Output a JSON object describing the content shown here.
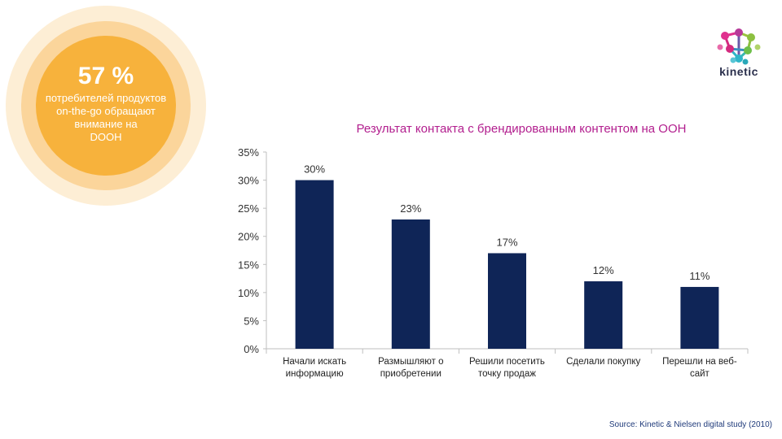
{
  "stat": {
    "value": "57 %",
    "lines": [
      "потребителей продуктов",
      "on-the-go обращают",
      "внимание на",
      "DOOH"
    ]
  },
  "logo": {
    "text": "kinetic"
  },
  "chart_data": {
    "type": "bar",
    "title": "Результат контакта с брендированным контентом на ООН",
    "categories": [
      [
        "Начали искать",
        "информацию"
      ],
      [
        "Размышляют о",
        "приобретении"
      ],
      [
        "Решили посетить",
        "точку продаж"
      ],
      [
        "Сделали покупку"
      ],
      [
        "Перешли на веб-",
        "сайт"
      ]
    ],
    "values": [
      30,
      23,
      17,
      12,
      11
    ],
    "data_labels": [
      "30%",
      "23%",
      "17%",
      "12%",
      "11%"
    ],
    "ylim": [
      0,
      35
    ],
    "yticks": [
      0,
      5,
      10,
      15,
      20,
      25,
      30,
      35
    ],
    "ytick_labels": [
      "0%",
      "5%",
      "10%",
      "15%",
      "20%",
      "25%",
      "30%",
      "35%"
    ],
    "xlabel": "",
    "ylabel": "",
    "bar_color": "#0f2557",
    "grid": false
  },
  "source": "Source: Kinetic & Nielsen digital study (2010)",
  "colors": {
    "title": "#b21e8e",
    "circle_outer": "#fdeed5",
    "circle_mid": "#fbd59b",
    "circle_inner": "#f7b23c",
    "source_text": "#1f3a7a"
  }
}
